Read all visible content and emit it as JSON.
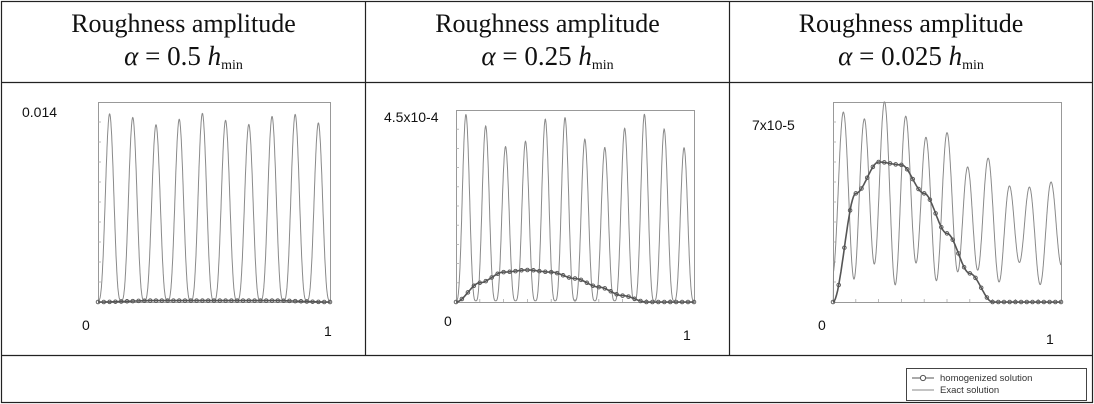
{
  "panels": [
    {
      "title": "Roughness amplitude",
      "alpha_value": "0.5",
      "ymax_label": "0.014",
      "xmin_label": "0",
      "xmax_label": "1"
    },
    {
      "title": "Roughness amplitude",
      "alpha_value": "0.25",
      "ymax_label": "4.5x10-4",
      "xmin_label": "0",
      "xmax_label": "1"
    },
    {
      "title": "Roughness amplitude",
      "alpha_value": "0.025",
      "ymax_label": "7x10-5",
      "xmin_label": "0",
      "xmax_label": "1"
    }
  ],
  "formula_symbol": "α",
  "formula_h": "h",
  "formula_sub": "min",
  "legend": {
    "homogenized": "homogenized solution",
    "exact": "Exact solution"
  },
  "chart_data": [
    {
      "type": "line",
      "title": "",
      "xlabel": "",
      "ylabel": "",
      "xlim": [
        0,
        1
      ],
      "ylim": [
        0,
        0.014
      ],
      "grid": false,
      "legend_placement": "bottom-right",
      "series": [
        {
          "name": "Exact solution",
          "style": "thin line",
          "oscillations": 10,
          "peak_range": [
            0.0124,
            0.0132
          ],
          "trough": 0.0001
        },
        {
          "name": "homogenized solution",
          "style": "line with circles",
          "x": [
            0,
            0.25,
            0.5,
            0.75,
            1
          ],
          "y": [
            0,
            0.0001,
            0.0001,
            0.0001,
            0
          ]
        }
      ]
    },
    {
      "type": "line",
      "title": "",
      "xlabel": "",
      "ylabel": "",
      "xlim": [
        0,
        1
      ],
      "ylim": [
        0,
        0.00045
      ],
      "grid": false,
      "legend_placement": "bottom-right",
      "series": [
        {
          "name": "Exact solution",
          "style": "thin line",
          "oscillations": 12,
          "peak_range": [
            0.00036,
            0.00044
          ],
          "trough": 3e-06
        },
        {
          "name": "homogenized solution",
          "style": "line with circles",
          "x": [
            0,
            0.1,
            0.2,
            0.3,
            0.4,
            0.5,
            0.6,
            0.7,
            0.8
          ],
          "y": [
            0,
            4.5e-05,
            7e-05,
            7.5e-05,
            7e-05,
            5.5e-05,
            3.5e-05,
            1.5e-05,
            0
          ]
        }
      ]
    },
    {
      "type": "line",
      "title": "",
      "xlabel": "",
      "ylabel": "",
      "xlim": [
        0,
        1
      ],
      "ylim": [
        0,
        7e-05
      ],
      "grid": false,
      "legend_placement": "bottom-right",
      "series": [
        {
          "name": "Exact solution",
          "style": "thin line",
          "oscillations": 11,
          "peak_range": [
            4e-05,
            7e-05
          ],
          "trough": 1e-05
        },
        {
          "name": "homogenized solution",
          "style": "line with circles",
          "x": [
            0,
            0.1,
            0.2,
            0.3,
            0.4,
            0.5,
            0.6,
            0.7
          ],
          "y": [
            0,
            3.8e-05,
            4.9e-05,
            4.8e-05,
            3.8e-05,
            2.4e-05,
            1e-05,
            0
          ]
        }
      ]
    }
  ]
}
